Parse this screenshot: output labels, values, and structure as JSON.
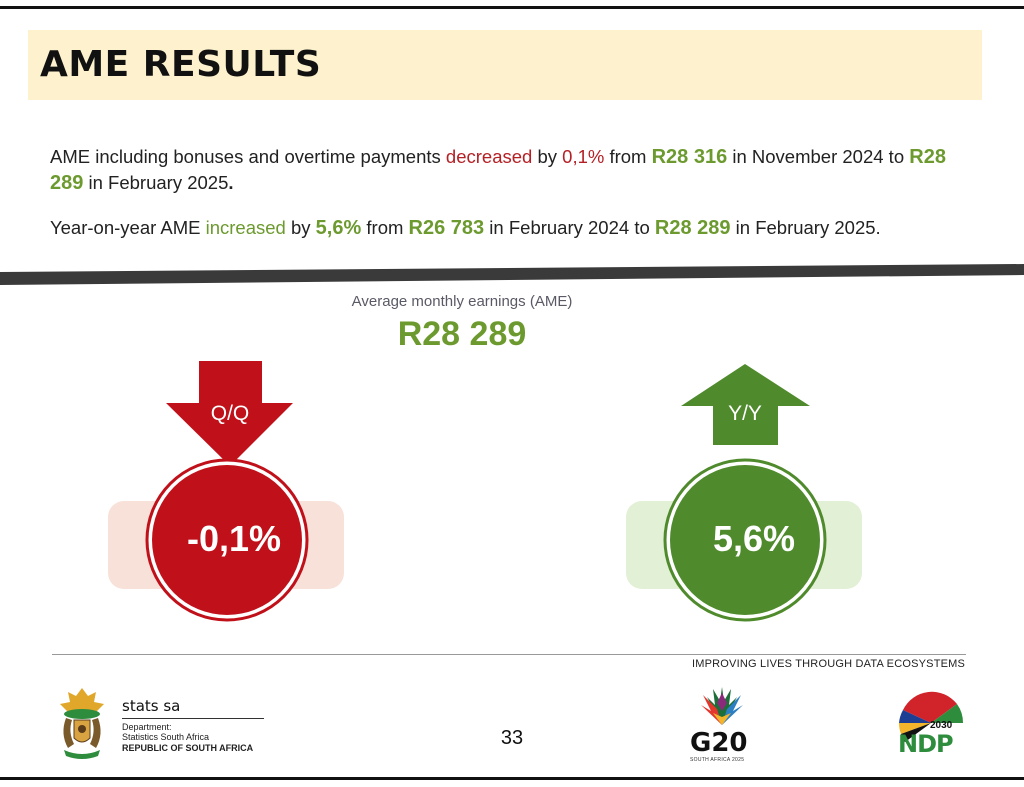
{
  "title": "AME RESULTS",
  "para1": {
    "p1": "AME including bonuses and overtime payments ",
    "decreased": "decreased",
    "p2": " by ",
    "pct": "0,1%",
    "p3": " from ",
    "from_value": "R28 316",
    "p4": "  in November 2024 to ",
    "to_value": "R28 289",
    "p5": " in February 2025",
    "end": "."
  },
  "para2": {
    "p1": "Year-on-year AME ",
    "increased": "increased",
    "p2": " by ",
    "pct": "5,6%",
    "p3": " from ",
    "from_value": "R26 783",
    "p4": " in February 2024 to ",
    "to_value": "R28 289",
    "p5": " in February 2025."
  },
  "ame": {
    "label": "Average monthly earnings (AME)",
    "value": "R28 289"
  },
  "qq": {
    "label": "Q/Q",
    "value": "-0,1%",
    "direction": "down",
    "color": "#c0111b",
    "pill": "#f8e1d9"
  },
  "yy": {
    "label": "Y/Y",
    "value": "5,6%",
    "direction": "up",
    "color": "#4f8a2c",
    "pill": "#e2f0d5"
  },
  "footer": {
    "tagline": "IMPROVING LIVES THROUGH DATA ECOSYSTEMS",
    "org_name": "stats sa",
    "dept_line1": "Department:",
    "dept_line2": "Statistics South Africa",
    "country": "REPUBLIC OF SOUTH AFRICA",
    "page": "33",
    "g20": "G20",
    "g20_sub": "SOUTH AFRICA 2025",
    "ndp": "NDP",
    "ndp_year": "2030"
  }
}
